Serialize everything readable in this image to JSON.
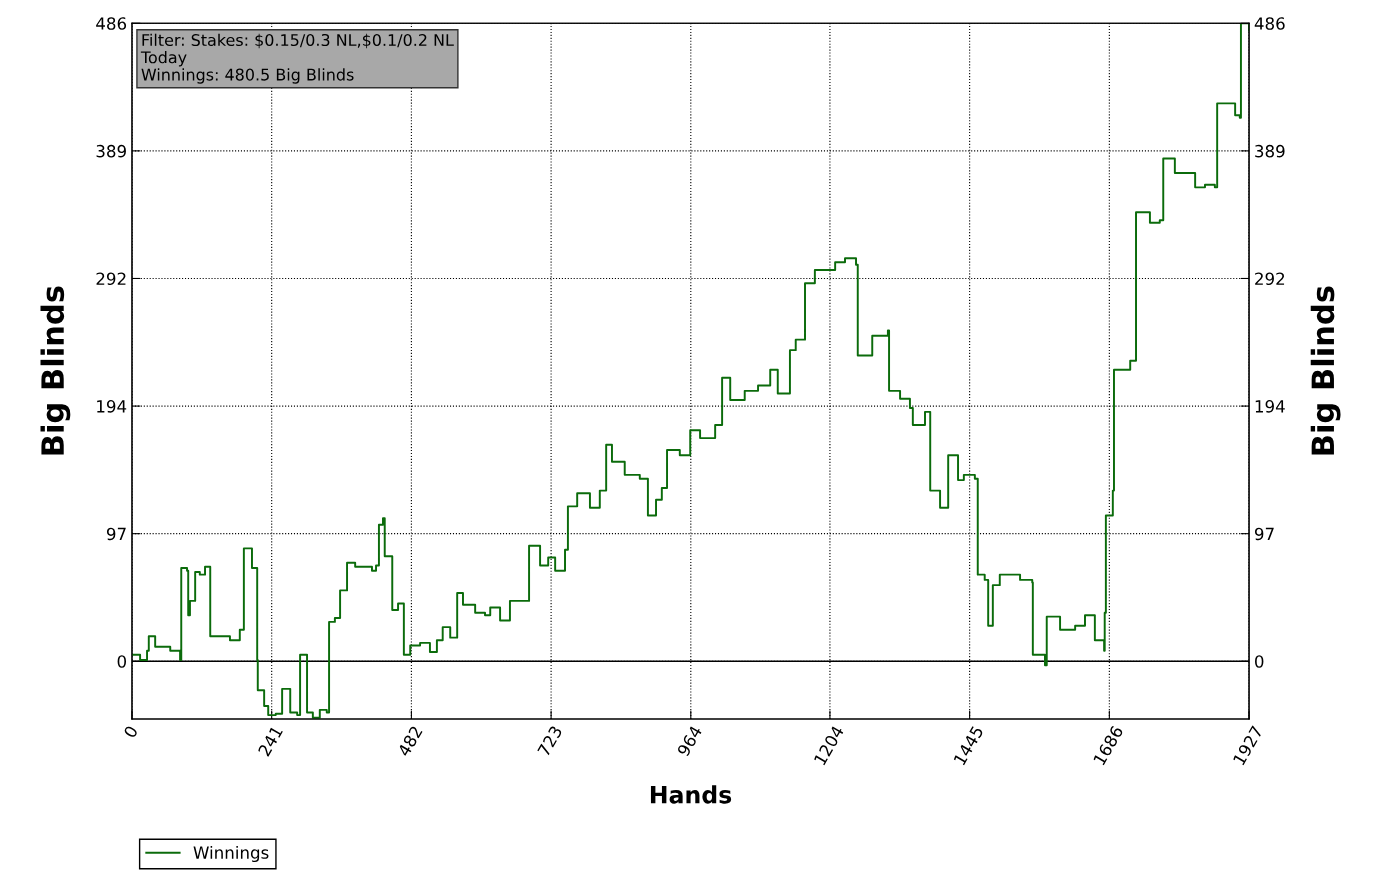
{
  "chart_data": {
    "type": "step",
    "xlabel": "Hands",
    "ylabel": "Big Blinds",
    "y2label": "Big Blinds",
    "annotations": [
      "Filter: Stakes: $0.15/0.3 NL,$0.1/0.2 NL\nToday\nWinnings: 480.5 Big Blinds"
    ],
    "xlim": [
      0,
      1927
    ],
    "xticks": [
      0,
      241,
      482,
      723,
      964,
      1204,
      1445,
      1686,
      1927
    ],
    "ylim": [
      -44,
      486
    ],
    "yticks": [
      0,
      {
        "value": 97.2,
        "label": "97"
      },
      {
        "value": 194.4,
        "label": "194"
      },
      {
        "value": 291.6,
        "label": "292"
      },
      {
        "value": 388.8,
        "label": "389"
      },
      486
    ],
    "y2lim": [
      -44,
      486
    ],
    "y2ticks": [
      0,
      {
        "value": 97.2,
        "label": "97"
      },
      {
        "value": 194.4,
        "label": "194"
      },
      {
        "value": 291.6,
        "label": "292"
      },
      {
        "value": 388.8,
        "label": "389"
      },
      486
    ],
    "grid": true,
    "legend": "bottom left",
    "line_style": "solid",
    "ref_lines": [
      {
        "axis": "y",
        "value": 0,
        "label": null,
        "color": "#000000",
        "line_style": "solid"
      }
    ],
    "series": [
      {
        "name": "Winnings",
        "color": "#0b6b0b",
        "x": [
          0,
          14,
          26,
          29,
          40,
          66,
          83,
          85,
          95,
          97,
          100,
          109,
          117,
          126,
          135,
          169,
          186,
          193,
          207,
          216,
          217,
          228,
          235,
          248,
          259,
          273,
          285,
          290,
          298,
          302,
          312,
          324,
          336,
          340,
          350,
          359,
          371,
          385,
          414,
          421,
          426,
          433,
          436,
          449,
          459,
          469,
          480,
          497,
          514,
          526,
          536,
          549,
          561,
          571,
          592,
          609,
          618,
          635,
          652,
          666,
          685,
          704,
          718,
          730,
          747,
          752,
          768,
          790,
          807,
          818,
          828,
          850,
          876,
          890,
          904,
          914,
          923,
          945,
          963,
          980,
          1006,
          1018,
          1032,
          1057,
          1080,
          1101,
          1114,
          1135,
          1145,
          1161,
          1178,
          1213,
          1230,
          1249,
          1252,
          1277,
          1304,
          1306,
          1325,
          1342,
          1347,
          1368,
          1377,
          1394,
          1408,
          1425,
          1435,
          1454,
          1459,
          1471,
          1477,
          1485,
          1497,
          1532,
          1553,
          1554,
          1575,
          1578,
          1601,
          1627,
          1644,
          1661,
          1677,
          1678,
          1680,
          1692,
          1694,
          1722,
          1732,
          1756,
          1773,
          1779,
          1799,
          1834,
          1851,
          1868,
          1872,
          1903,
          1911,
          1913,
          1927
        ],
        "values": [
          5,
          1,
          8,
          19,
          11,
          8,
          1,
          71,
          69,
          35,
          46,
          68,
          66,
          72,
          19,
          16,
          24,
          86,
          71,
          1,
          -22,
          -34,
          -41,
          -40,
          -21,
          -39,
          -41,
          5,
          5,
          -39,
          -43,
          -37,
          -39,
          30,
          33,
          54,
          75,
          72,
          69,
          73,
          104,
          109,
          80,
          39,
          44,
          5,
          12,
          14,
          7,
          16,
          26,
          18,
          52,
          43,
          37,
          35,
          41,
          31,
          46,
          46,
          88,
          73,
          79,
          69,
          85,
          118,
          128,
          117,
          130,
          165,
          152,
          142,
          139,
          111,
          123,
          132,
          161,
          157,
          176,
          170,
          180,
          216,
          199,
          206,
          210,
          222,
          204,
          237,
          245,
          288,
          298,
          304,
          307,
          302,
          233,
          248,
          252,
          206,
          200,
          193,
          180,
          190,
          130,
          117,
          157,
          138,
          142,
          139,
          66,
          62,
          27,
          58,
          66,
          62,
          60,
          5,
          -3,
          34,
          24,
          27,
          35,
          16,
          8,
          37,
          111,
          130,
          222,
          229,
          342,
          334,
          336,
          383,
          372,
          361,
          363,
          361,
          425,
          416,
          414,
          486,
          480.5
        ]
      }
    ]
  }
}
